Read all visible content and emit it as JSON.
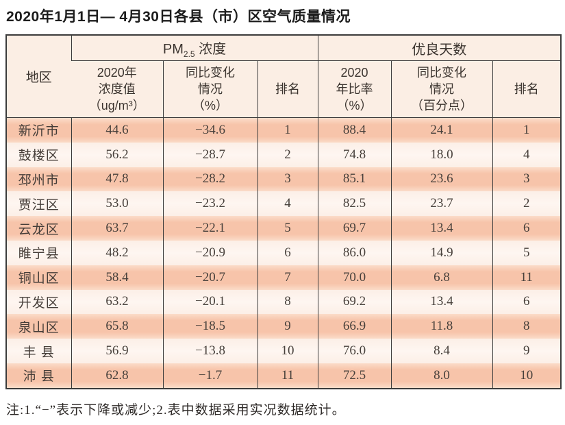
{
  "title": "2020年1月1日— 4月30日各县（市）区空气质量情况",
  "table": {
    "corner_header": "地区",
    "pm_group": {
      "prefix": "PM",
      "sub": "2.5",
      "suffix": " 浓度"
    },
    "good_days_group": "优良天数",
    "sub_headers": [
      "2020年\n浓度值\n（ug/m³）",
      "同比变化\n情况\n（%）",
      "排名",
      "2020\n年比率\n（%）",
      "同比变化\n情况\n（百分点）",
      "排名"
    ],
    "rows": [
      [
        "新沂市",
        "44.6",
        "−34.6",
        "1",
        "88.4",
        "24.1",
        "1"
      ],
      [
        "鼓楼区",
        "56.2",
        "−28.7",
        "2",
        "74.8",
        "18.0",
        "4"
      ],
      [
        "邳州市",
        "47.8",
        "−28.2",
        "3",
        "85.1",
        "23.6",
        "3"
      ],
      [
        "贾汪区",
        "53.0",
        "−23.2",
        "4",
        "82.5",
        "23.7",
        "2"
      ],
      [
        "云龙区",
        "63.7",
        "−22.1",
        "5",
        "69.7",
        "13.4",
        "6"
      ],
      [
        "睢宁县",
        "48.2",
        "−20.9",
        "6",
        "86.0",
        "14.9",
        "5"
      ],
      [
        "铜山区",
        "58.4",
        "−20.7",
        "7",
        "70.0",
        "6.8",
        "11"
      ],
      [
        "开发区",
        "63.2",
        "−20.1",
        "8",
        "69.2",
        "13.4",
        "6"
      ],
      [
        "泉山区",
        "65.8",
        "−18.5",
        "9",
        "66.9",
        "11.8",
        "8"
      ],
      [
        "丰 县",
        "56.9",
        "−13.8",
        "10",
        "76.0",
        "8.4",
        "9"
      ],
      [
        "沛 县",
        "62.8",
        "−1.7",
        "11",
        "72.5",
        "8.0",
        "10"
      ]
    ]
  },
  "note": "注:1.“−”表示下降或减少;2.表中数据采用实况数据统计。",
  "colors": {
    "row_salmon": "#f7c4aa",
    "row_light": "#fcefe7",
    "header_bg": "#fbeee4",
    "border": "#3b3b3b",
    "text": "#47403b"
  },
  "chart_data": {
    "type": "table",
    "title": "2020年1月1日— 4月30日各县（市）区空气质量情况",
    "column_groups": [
      "PM2.5 浓度",
      "优良天数"
    ],
    "columns": [
      "地区",
      "2020年浓度值（ug/m³）",
      "同比变化情况（%）",
      "排名",
      "2020年比率（%）",
      "同比变化情况（百分点）",
      "排名"
    ],
    "rows": [
      [
        "新沂市",
        44.6,
        -34.6,
        1,
        88.4,
        24.1,
        1
      ],
      [
        "鼓楼区",
        56.2,
        -28.7,
        2,
        74.8,
        18.0,
        4
      ],
      [
        "邳州市",
        47.8,
        -28.2,
        3,
        85.1,
        23.6,
        3
      ],
      [
        "贾汪区",
        53.0,
        -23.2,
        4,
        82.5,
        23.7,
        2
      ],
      [
        "云龙区",
        63.7,
        -22.1,
        5,
        69.7,
        13.4,
        6
      ],
      [
        "睢宁县",
        48.2,
        -20.9,
        6,
        86.0,
        14.9,
        5
      ],
      [
        "铜山区",
        58.4,
        -20.7,
        7,
        70.0,
        6.8,
        11
      ],
      [
        "开发区",
        63.2,
        -20.1,
        8,
        69.2,
        13.4,
        6
      ],
      [
        "泉山区",
        65.8,
        -18.5,
        9,
        66.9,
        11.8,
        8
      ],
      [
        "丰县",
        56.9,
        -13.8,
        10,
        76.0,
        8.4,
        9
      ],
      [
        "沛县",
        62.8,
        -1.7,
        11,
        72.5,
        8.0,
        10
      ]
    ]
  }
}
